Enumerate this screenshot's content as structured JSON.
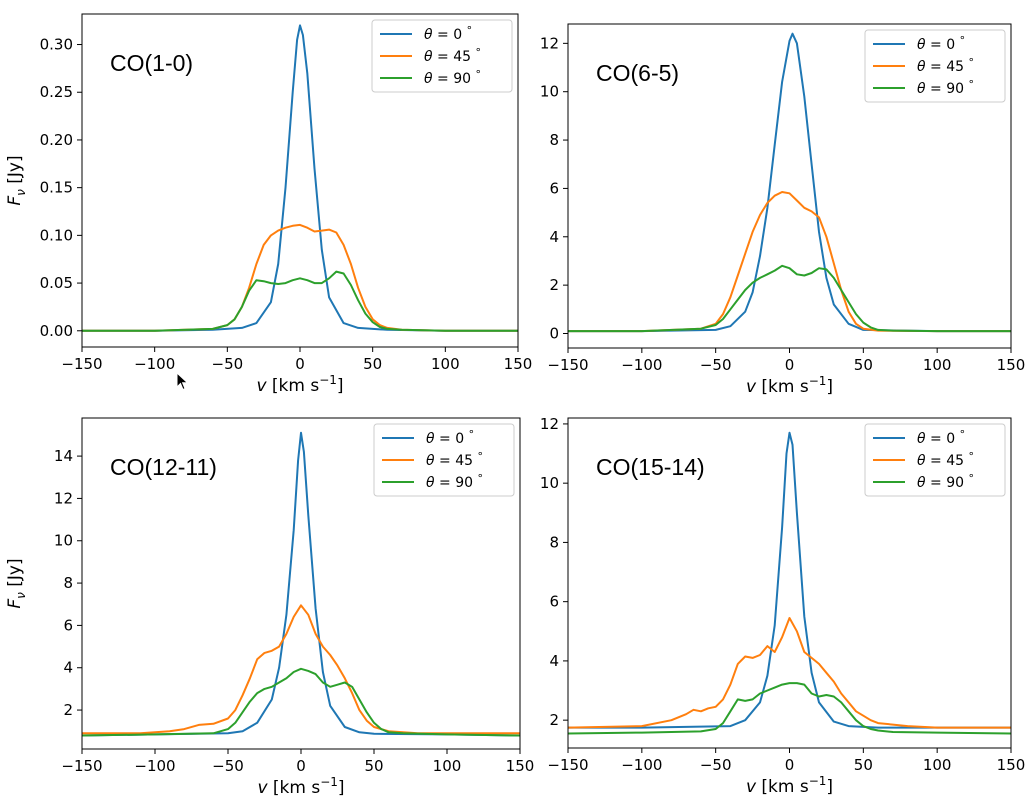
{
  "chart_data": [
    {
      "type": "line",
      "panel": "top-left",
      "title": "CO(1-0)",
      "xlabel": "v [km s⁻¹]",
      "ylabel": "Fν [Jy]",
      "xlim": [
        -150,
        150
      ],
      "ylim": [
        -0.017,
        0.332
      ],
      "xticks": [
        -150,
        -100,
        -50,
        0,
        50,
        100,
        150
      ],
      "yticks": [
        0.0,
        0.05,
        0.1,
        0.15,
        0.2,
        0.25,
        0.3
      ],
      "ytick_decimals": 2,
      "legend_position": "top-right",
      "series": [
        {
          "name": "θ = 0 °",
          "color": "#1f77b4",
          "x": [
            -150,
            -100,
            -60,
            -40,
            -30,
            -20,
            -15,
            -10,
            -5,
            -2,
            0,
            2,
            5,
            10,
            15,
            20,
            30,
            40,
            60,
            100,
            150
          ],
          "y": [
            0,
            0,
            0.001,
            0.003,
            0.008,
            0.03,
            0.07,
            0.15,
            0.25,
            0.305,
            0.32,
            0.31,
            0.27,
            0.17,
            0.085,
            0.035,
            0.008,
            0.003,
            0.001,
            0,
            0
          ]
        },
        {
          "name": "θ = 45 °",
          "color": "#ff7f0e",
          "x": [
            -150,
            -100,
            -60,
            -50,
            -45,
            -40,
            -35,
            -30,
            -25,
            -20,
            -15,
            -10,
            -5,
            0,
            5,
            10,
            15,
            20,
            25,
            30,
            35,
            40,
            45,
            50,
            55,
            60,
            70,
            100,
            150
          ],
          "y": [
            0,
            0,
            0.002,
            0.006,
            0.012,
            0.025,
            0.045,
            0.07,
            0.09,
            0.1,
            0.105,
            0.108,
            0.11,
            0.111,
            0.108,
            0.104,
            0.105,
            0.106,
            0.103,
            0.09,
            0.07,
            0.045,
            0.025,
            0.012,
            0.006,
            0.003,
            0.001,
            0,
            0
          ]
        },
        {
          "name": "θ = 90 °",
          "color": "#2ca02c",
          "x": [
            -150,
            -100,
            -60,
            -50,
            -45,
            -40,
            -35,
            -30,
            -25,
            -20,
            -15,
            -10,
            -5,
            0,
            5,
            10,
            15,
            20,
            25,
            30,
            35,
            40,
            45,
            50,
            55,
            60,
            70,
            100,
            150
          ],
          "y": [
            0,
            0,
            0.002,
            0.006,
            0.012,
            0.025,
            0.042,
            0.053,
            0.052,
            0.05,
            0.049,
            0.05,
            0.053,
            0.055,
            0.053,
            0.05,
            0.05,
            0.055,
            0.062,
            0.06,
            0.048,
            0.032,
            0.018,
            0.009,
            0.004,
            0.002,
            0.001,
            0,
            0
          ]
        }
      ]
    },
    {
      "type": "line",
      "panel": "top-right",
      "title": "CO(6-5)",
      "xlabel": "v [km s⁻¹]",
      "ylabel": "",
      "xlim": [
        -150,
        150
      ],
      "ylim": [
        -0.6,
        12.8
      ],
      "xticks": [
        -150,
        -100,
        -50,
        0,
        50,
        100,
        150
      ],
      "yticks": [
        0,
        2,
        4,
        6,
        8,
        10,
        12
      ],
      "ytick_decimals": 0,
      "legend_position": "top-right",
      "series": [
        {
          "name": "θ = 0 °",
          "color": "#1f77b4",
          "x": [
            -150,
            -100,
            -50,
            -40,
            -30,
            -25,
            -20,
            -15,
            -10,
            -5,
            0,
            2,
            5,
            10,
            15,
            20,
            25,
            30,
            40,
            50,
            100,
            150
          ],
          "y": [
            0.1,
            0.1,
            0.15,
            0.3,
            0.9,
            1.7,
            3.2,
            5.2,
            7.8,
            10.4,
            12.1,
            12.4,
            12.0,
            9.8,
            7.0,
            4.2,
            2.3,
            1.2,
            0.4,
            0.15,
            0.1,
            0.1
          ]
        },
        {
          "name": "θ = 45 °",
          "color": "#ff7f0e",
          "x": [
            -150,
            -100,
            -60,
            -50,
            -45,
            -40,
            -35,
            -30,
            -25,
            -20,
            -15,
            -10,
            -5,
            0,
            5,
            10,
            15,
            20,
            25,
            30,
            35,
            40,
            45,
            50,
            60,
            100,
            150
          ],
          "y": [
            0.1,
            0.1,
            0.2,
            0.4,
            0.8,
            1.5,
            2.4,
            3.3,
            4.2,
            4.9,
            5.4,
            5.7,
            5.85,
            5.8,
            5.5,
            5.2,
            5.05,
            4.8,
            4.0,
            2.9,
            1.8,
            0.9,
            0.4,
            0.2,
            0.12,
            0.1,
            0.1
          ]
        },
        {
          "name": "θ = 90 °",
          "color": "#2ca02c",
          "x": [
            -150,
            -100,
            -60,
            -50,
            -45,
            -40,
            -35,
            -30,
            -25,
            -20,
            -15,
            -10,
            -5,
            0,
            5,
            10,
            15,
            20,
            25,
            30,
            35,
            40,
            45,
            50,
            55,
            60,
            70,
            100,
            150
          ],
          "y": [
            0.1,
            0.1,
            0.2,
            0.35,
            0.6,
            1.0,
            1.4,
            1.8,
            2.1,
            2.3,
            2.45,
            2.6,
            2.8,
            2.7,
            2.45,
            2.4,
            2.5,
            2.7,
            2.65,
            2.3,
            1.8,
            1.3,
            0.8,
            0.45,
            0.25,
            0.15,
            0.12,
            0.1,
            0.1
          ]
        }
      ]
    },
    {
      "type": "line",
      "panel": "bottom-left",
      "title": "CO(12-11)",
      "xlabel": "v [km s⁻¹]",
      "ylabel": "Fν [Jy]",
      "xlim": [
        -150,
        150
      ],
      "ylim": [
        0.16,
        15.8
      ],
      "xticks": [
        -150,
        -100,
        -50,
        0,
        50,
        100,
        150
      ],
      "yticks": [
        2,
        4,
        6,
        8,
        10,
        12,
        14
      ],
      "ytick_decimals": 0,
      "legend_position": "top-right",
      "series": [
        {
          "name": "θ = 0 °",
          "color": "#1f77b4",
          "x": [
            -150,
            -100,
            -50,
            -40,
            -30,
            -20,
            -15,
            -10,
            -5,
            -2,
            0,
            2,
            5,
            10,
            15,
            20,
            30,
            40,
            50,
            100,
            150
          ],
          "y": [
            0.8,
            0.85,
            0.9,
            1.0,
            1.4,
            2.5,
            4.0,
            6.5,
            10.5,
            13.8,
            15.1,
            14.2,
            11.2,
            6.8,
            3.8,
            2.2,
            1.2,
            0.95,
            0.88,
            0.85,
            0.8
          ]
        },
        {
          "name": "θ = 45 °",
          "color": "#ff7f0e",
          "x": [
            -150,
            -110,
            -90,
            -80,
            -70,
            -60,
            -50,
            -45,
            -40,
            -35,
            -30,
            -25,
            -20,
            -15,
            -10,
            -5,
            0,
            5,
            10,
            15,
            20,
            25,
            30,
            35,
            40,
            45,
            50,
            60,
            70,
            80,
            100,
            150
          ],
          "y": [
            0.9,
            0.9,
            1.0,
            1.1,
            1.3,
            1.35,
            1.6,
            2.0,
            2.7,
            3.5,
            4.4,
            4.7,
            4.8,
            5.0,
            5.6,
            6.4,
            6.95,
            6.5,
            5.6,
            5.0,
            4.6,
            4.1,
            3.5,
            2.8,
            2.0,
            1.5,
            1.2,
            1.0,
            0.95,
            0.9,
            0.9,
            0.9
          ]
        },
        {
          "name": "θ = 90 °",
          "color": "#2ca02c",
          "x": [
            -150,
            -100,
            -60,
            -50,
            -45,
            -40,
            -35,
            -30,
            -25,
            -20,
            -15,
            -10,
            -5,
            0,
            5,
            10,
            15,
            20,
            25,
            30,
            35,
            40,
            45,
            50,
            55,
            60,
            70,
            100,
            150
          ],
          "y": [
            0.8,
            0.85,
            0.9,
            1.1,
            1.4,
            1.9,
            2.4,
            2.8,
            3.0,
            3.1,
            3.3,
            3.5,
            3.8,
            3.95,
            3.85,
            3.7,
            3.3,
            3.1,
            3.2,
            3.3,
            3.1,
            2.5,
            1.9,
            1.4,
            1.1,
            0.95,
            0.9,
            0.85,
            0.8
          ]
        }
      ]
    },
    {
      "type": "line",
      "panel": "bottom-right",
      "title": "CO(15-14)",
      "xlabel": "v [km s⁻¹]",
      "ylabel": "",
      "xlim": [
        -150,
        150
      ],
      "ylim": [
        1.06,
        12.2
      ],
      "xticks": [
        -150,
        -100,
        -50,
        0,
        50,
        100,
        150
      ],
      "yticks": [
        2,
        4,
        6,
        8,
        10,
        12
      ],
      "ytick_decimals": 0,
      "legend_position": "top-right",
      "series": [
        {
          "name": "θ = 0 °",
          "color": "#1f77b4",
          "x": [
            -150,
            -100,
            -40,
            -30,
            -20,
            -15,
            -10,
            -5,
            -2,
            0,
            2,
            5,
            10,
            15,
            20,
            30,
            40,
            60,
            100,
            150
          ],
          "y": [
            1.75,
            1.75,
            1.8,
            2.0,
            2.6,
            3.5,
            5.2,
            8.5,
            11.0,
            11.7,
            11.3,
            9.0,
            5.5,
            3.6,
            2.6,
            1.95,
            1.8,
            1.75,
            1.75,
            1.75
          ]
        },
        {
          "name": "θ = 45 °",
          "color": "#ff7f0e",
          "x": [
            -150,
            -100,
            -80,
            -70,
            -65,
            -60,
            -55,
            -50,
            -45,
            -40,
            -35,
            -30,
            -25,
            -20,
            -15,
            -10,
            -5,
            0,
            5,
            10,
            15,
            20,
            25,
            30,
            35,
            40,
            45,
            50,
            55,
            60,
            70,
            80,
            100,
            150
          ],
          "y": [
            1.75,
            1.8,
            2.0,
            2.2,
            2.35,
            2.3,
            2.4,
            2.45,
            2.7,
            3.2,
            3.9,
            4.15,
            4.1,
            4.2,
            4.5,
            4.3,
            4.8,
            5.45,
            5.0,
            4.3,
            4.1,
            3.9,
            3.6,
            3.3,
            2.9,
            2.6,
            2.3,
            2.15,
            2.0,
            1.9,
            1.85,
            1.8,
            1.75,
            1.75
          ]
        },
        {
          "name": "θ = 90 °",
          "color": "#2ca02c",
          "x": [
            -150,
            -100,
            -60,
            -50,
            -45,
            -40,
            -35,
            -30,
            -25,
            -20,
            -15,
            -10,
            -5,
            0,
            5,
            10,
            15,
            20,
            25,
            30,
            35,
            40,
            45,
            50,
            55,
            60,
            70,
            100,
            150
          ],
          "y": [
            1.55,
            1.58,
            1.62,
            1.7,
            1.9,
            2.3,
            2.7,
            2.65,
            2.7,
            2.9,
            3.0,
            3.1,
            3.2,
            3.25,
            3.25,
            3.2,
            2.9,
            2.8,
            2.85,
            2.8,
            2.6,
            2.3,
            2.0,
            1.8,
            1.7,
            1.65,
            1.6,
            1.58,
            1.55
          ]
        }
      ]
    }
  ]
}
